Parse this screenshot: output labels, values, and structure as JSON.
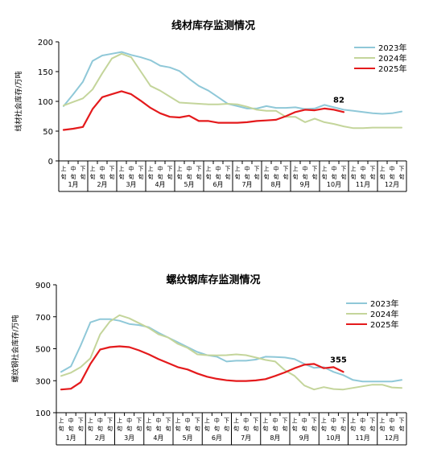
{
  "chart_data": [
    {
      "type": "line",
      "title": "线材库存监测情况",
      "ylabel": "线材社会库存/万吨",
      "ylim": [
        0,
        200
      ],
      "yticks": [
        0,
        50,
        100,
        150,
        200
      ],
      "x_period_labels": [
        "上",
        "中",
        "下"
      ],
      "months": [
        "1月",
        "2月",
        "3月",
        "4月",
        "5月",
        "6月",
        "7月",
        "8月",
        "9月",
        "10月",
        "11月",
        "12月"
      ],
      "legend_position": "top-right",
      "grid": false,
      "annotation": {
        "text": "82",
        "series": "2025年",
        "index": 29
      },
      "series": [
        {
          "name": "2023年",
          "color": "#8fc8d8",
          "values": [
            92,
            112,
            133,
            168,
            177,
            180,
            183,
            178,
            174,
            169,
            160,
            157,
            151,
            138,
            126,
            118,
            107,
            96,
            92,
            88,
            88,
            92,
            89,
            89,
            90,
            87,
            88,
            94,
            90,
            86,
            84,
            82,
            80,
            79,
            80,
            83
          ]
        },
        {
          "name": "2024年",
          "color": "#c4d59b",
          "values": [
            93,
            99,
            105,
            120,
            147,
            172,
            180,
            174,
            150,
            126,
            118,
            108,
            98,
            97,
            96,
            95,
            95,
            96,
            95,
            91,
            86,
            84,
            84,
            74,
            74,
            65,
            71,
            65,
            62,
            58,
            55,
            55,
            56,
            56,
            56,
            56
          ]
        },
        {
          "name": "2025年",
          "color": "#e41a1c",
          "values": [
            52,
            54,
            57,
            87,
            107,
            112,
            117,
            112,
            101,
            89,
            80,
            74,
            73,
            76,
            67,
            67,
            64,
            64,
            64,
            65,
            67,
            68,
            69,
            75,
            82,
            86,
            85,
            88,
            86,
            82
          ]
        }
      ]
    },
    {
      "type": "line",
      "title": "螺纹钢库存监测情况",
      "ylabel": "螺纹钢社会库存/万吨",
      "ylim": [
        100,
        900
      ],
      "yticks": [
        100,
        300,
        500,
        700,
        900
      ],
      "x_period_labels": [
        "上",
        "中",
        "下"
      ],
      "months": [
        "1月",
        "2月",
        "3月",
        "4月",
        "5月",
        "6月",
        "7月",
        "8月",
        "9月",
        "10月",
        "11月",
        "12月"
      ],
      "legend_position": "top-right",
      "grid": false,
      "annotation": {
        "text": "355",
        "series": "2025年",
        "index": 29
      },
      "series": [
        {
          "name": "2023年",
          "color": "#8fc8d8",
          "values": [
            355,
            390,
            520,
            665,
            685,
            685,
            675,
            655,
            648,
            635,
            600,
            570,
            540,
            510,
            480,
            460,
            450,
            420,
            425,
            425,
            432,
            450,
            448,
            445,
            435,
            405,
            380,
            385,
            355,
            335,
            305,
            295,
            295,
            295,
            295,
            305
          ]
        },
        {
          "name": "2024年",
          "color": "#c4d59b",
          "values": [
            330,
            350,
            385,
            440,
            590,
            670,
            710,
            690,
            660,
            630,
            590,
            570,
            530,
            505,
            465,
            460,
            458,
            460,
            465,
            460,
            445,
            430,
            420,
            365,
            330,
            270,
            245,
            260,
            248,
            245,
            255,
            265,
            275,
            275,
            258,
            255
          ]
        },
        {
          "name": "2025年",
          "color": "#e41a1c",
          "values": [
            245,
            250,
            290,
            405,
            495,
            510,
            515,
            510,
            490,
            465,
            435,
            410,
            385,
            370,
            345,
            325,
            312,
            303,
            298,
            298,
            302,
            310,
            330,
            352,
            378,
            400,
            405,
            378,
            385,
            355
          ]
        }
      ]
    }
  ]
}
